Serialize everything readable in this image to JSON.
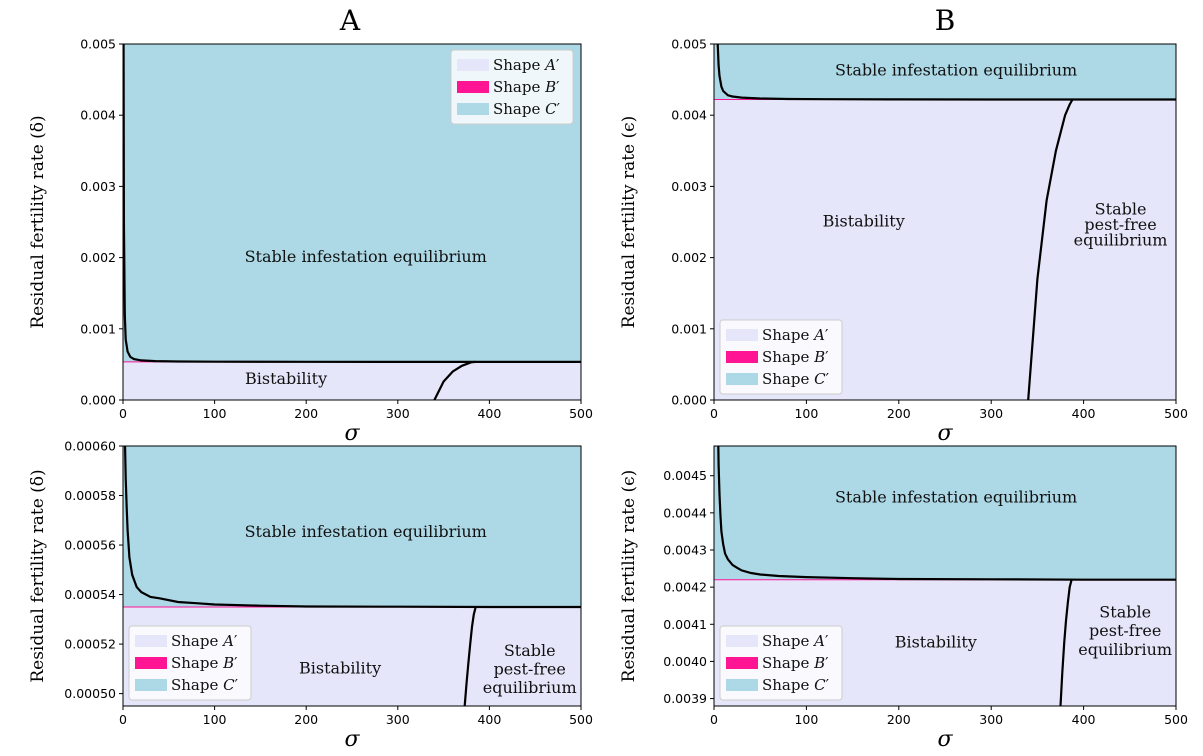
{
  "column_titles": [
    "A",
    "B"
  ],
  "colors": {
    "shape_a": "#e6e6fa",
    "shape_b": "#ff1493",
    "shape_c": "#add8e6",
    "curve": "#000000"
  },
  "chart_data": [
    {
      "id": "A-top",
      "type": "area",
      "xlabel": "σ",
      "ylabel": "Residual fertility rate (δ)",
      "xlim": [
        0,
        500
      ],
      "ylim": [
        0,
        0.005
      ],
      "xticks": [
        "0",
        "100",
        "200",
        "300",
        "400",
        "500"
      ],
      "yticks": [
        "0.000",
        "0.001",
        "0.002",
        "0.003",
        "0.004",
        "0.005"
      ],
      "legend": {
        "position": "upper right",
        "entries": [
          "Shape A′",
          "Shape B′",
          "Shape C′"
        ]
      },
      "threshold": 0.000535,
      "upper_curve": {
        "x": [
          0.5,
          1,
          2,
          3,
          5,
          8,
          12,
          20,
          35,
          60,
          100,
          200,
          300,
          400,
          500
        ],
        "y": [
          0.0055,
          0.0025,
          0.0012,
          0.00085,
          0.00068,
          0.000605,
          0.000575,
          0.000556,
          0.000546,
          0.000541,
          0.000538,
          0.000536,
          0.000535,
          0.000535,
          0.000535
        ]
      },
      "lower_curve": {
        "x": [
          340,
          350,
          360,
          370,
          380,
          385
        ],
        "y": [
          0.0,
          0.00026,
          0.0004,
          0.00048,
          0.00053,
          0.000535
        ]
      },
      "labels": [
        {
          "text": "Stable infestation equilibrium",
          "x": 265,
          "y": 0.002
        },
        {
          "text": "Bistability",
          "x": 178,
          "y": 0.00029
        }
      ]
    },
    {
      "id": "B-top",
      "type": "area",
      "xlabel": "σ",
      "ylabel": "Residual fertility rate (ϵ)",
      "xlim": [
        0,
        500
      ],
      "ylim": [
        0,
        0.005
      ],
      "xticks": [
        "0",
        "100",
        "200",
        "300",
        "400",
        "500"
      ],
      "yticks": [
        "0.000",
        "0.001",
        "0.002",
        "0.003",
        "0.004",
        "0.005"
      ],
      "legend": {
        "position": "lower left",
        "entries": [
          "Shape A′",
          "Shape B′",
          "Shape C′"
        ]
      },
      "threshold": 0.00422,
      "upper_curve": {
        "x": [
          3,
          4,
          5,
          6,
          8,
          10,
          15,
          20,
          30,
          50,
          80,
          120,
          200,
          300,
          400,
          500
        ],
        "y": [
          0.0055,
          0.005,
          0.0047,
          0.00455,
          0.0044,
          0.00434,
          0.00428,
          0.004263,
          0.004247,
          0.004235,
          0.004228,
          0.004225,
          0.004222,
          0.004221,
          0.00422,
          0.00422
        ]
      },
      "lower_curve": {
        "x": [
          340,
          350,
          360,
          370,
          380,
          385,
          388
        ],
        "y": [
          0.0,
          0.0017,
          0.0028,
          0.0035,
          0.004,
          0.00415,
          0.00422
        ]
      },
      "labels": [
        {
          "text": "Stable infestation equilibrium",
          "x": 262,
          "y": 0.00462
        },
        {
          "text": "Bistability",
          "x": 162,
          "y": 0.0025
        },
        {
          "text": "Stable",
          "x": 440,
          "y": 0.00267
        },
        {
          "text": "pest-free",
          "x": 440,
          "y": 0.00245
        },
        {
          "text": "equilibrium",
          "x": 440,
          "y": 0.00223
        }
      ]
    },
    {
      "id": "A-bottom",
      "type": "area",
      "xlabel": "σ",
      "ylabel": "Residual fertility rate (δ)",
      "xlim": [
        0,
        500
      ],
      "ylim": [
        0.000495,
        0.0006
      ],
      "xticks": [
        "0",
        "100",
        "200",
        "300",
        "400",
        "500"
      ],
      "yticks": [
        "0.00050",
        "0.00052",
        "0.00054",
        "0.00056",
        "0.00058",
        "0.00060"
      ],
      "ytick_values": [
        0.0005,
        0.00052,
        0.00054,
        0.00056,
        0.00058,
        0.0006
      ],
      "legend": {
        "position": "lower left",
        "entries": [
          "Shape A′",
          "Shape B′",
          "Shape C′"
        ]
      },
      "threshold": 0.000535,
      "upper_curve": {
        "x": [
          1.5,
          2,
          3,
          4,
          5,
          7,
          10,
          15,
          20,
          30,
          40,
          60,
          80,
          100,
          150,
          200,
          300,
          400,
          500
        ],
        "y": [
          0.00062,
          0.000605,
          0.000587,
          0.000575,
          0.000566,
          0.000555,
          0.000548,
          0.000543,
          0.000541,
          0.000539,
          0.0005385,
          0.000537,
          0.0005365,
          0.000536,
          0.0005355,
          0.0005352,
          0.0005351,
          0.000535,
          0.000535
        ]
      },
      "lower_curve": {
        "x": [
          373,
          375,
          377,
          379,
          381,
          383,
          385
        ],
        "y": [
          0.000495,
          0.000504,
          0.000512,
          0.00052,
          0.000527,
          0.000532,
          0.000535
        ]
      },
      "labels": [
        {
          "text": "Stable infestation equilibrium",
          "x": 265,
          "y": 0.000565
        },
        {
          "text": "Bistability",
          "x": 237,
          "y": 0.00051
        },
        {
          "text": "Stable",
          "x": 444,
          "y": 0.000517
        },
        {
          "text": "pest-free",
          "x": 444,
          "y": 0.0005095
        },
        {
          "text": "equilibrium",
          "x": 444,
          "y": 0.000502
        }
      ]
    },
    {
      "id": "B-bottom",
      "type": "area",
      "xlabel": "σ",
      "ylabel": "Residual fertility rate (ϵ)",
      "xlim": [
        0,
        500
      ],
      "ylim": [
        0.00388,
        0.00458
      ],
      "xticks": [
        "0",
        "100",
        "200",
        "300",
        "400",
        "500"
      ],
      "yticks": [
        "0.0039",
        "0.0040",
        "0.0041",
        "0.0042",
        "0.0043",
        "0.0044",
        "0.0045"
      ],
      "ytick_values": [
        0.0039,
        0.004,
        0.0041,
        0.0042,
        0.0043,
        0.0044,
        0.0045
      ],
      "legend": {
        "position": "lower left",
        "entries": [
          "Shape A′",
          "Shape B′",
          "Shape C′"
        ]
      },
      "threshold": 0.00422,
      "upper_curve": {
        "x": [
          4.5,
          5,
          6,
          7,
          8,
          10,
          12,
          15,
          20,
          25,
          30,
          40,
          50,
          70,
          100,
          150,
          200,
          300,
          400,
          500
        ],
        "y": [
          0.0046,
          0.00453,
          0.00445,
          0.00439,
          0.00435,
          0.004315,
          0.00429,
          0.004275,
          0.00426,
          0.004252,
          0.004245,
          0.004238,
          0.004234,
          0.00423,
          0.004227,
          0.004224,
          0.004222,
          0.004221,
          0.00422,
          0.00422
        ]
      },
      "lower_curve": {
        "x": [
          375,
          377,
          379,
          381,
          383,
          385,
          387
        ],
        "y": [
          0.00388,
          0.00397,
          0.00405,
          0.00411,
          0.00416,
          0.0042,
          0.00422
        ]
      },
      "labels": [
        {
          "text": "Stable infestation equilibrium",
          "x": 262,
          "y": 0.00444
        },
        {
          "text": "Bistability",
          "x": 240,
          "y": 0.00405
        },
        {
          "text": "Stable",
          "x": 445,
          "y": 0.00413
        },
        {
          "text": "pest-free",
          "x": 445,
          "y": 0.00408
        },
        {
          "text": "equilibrium",
          "x": 445,
          "y": 0.00403
        }
      ]
    }
  ]
}
